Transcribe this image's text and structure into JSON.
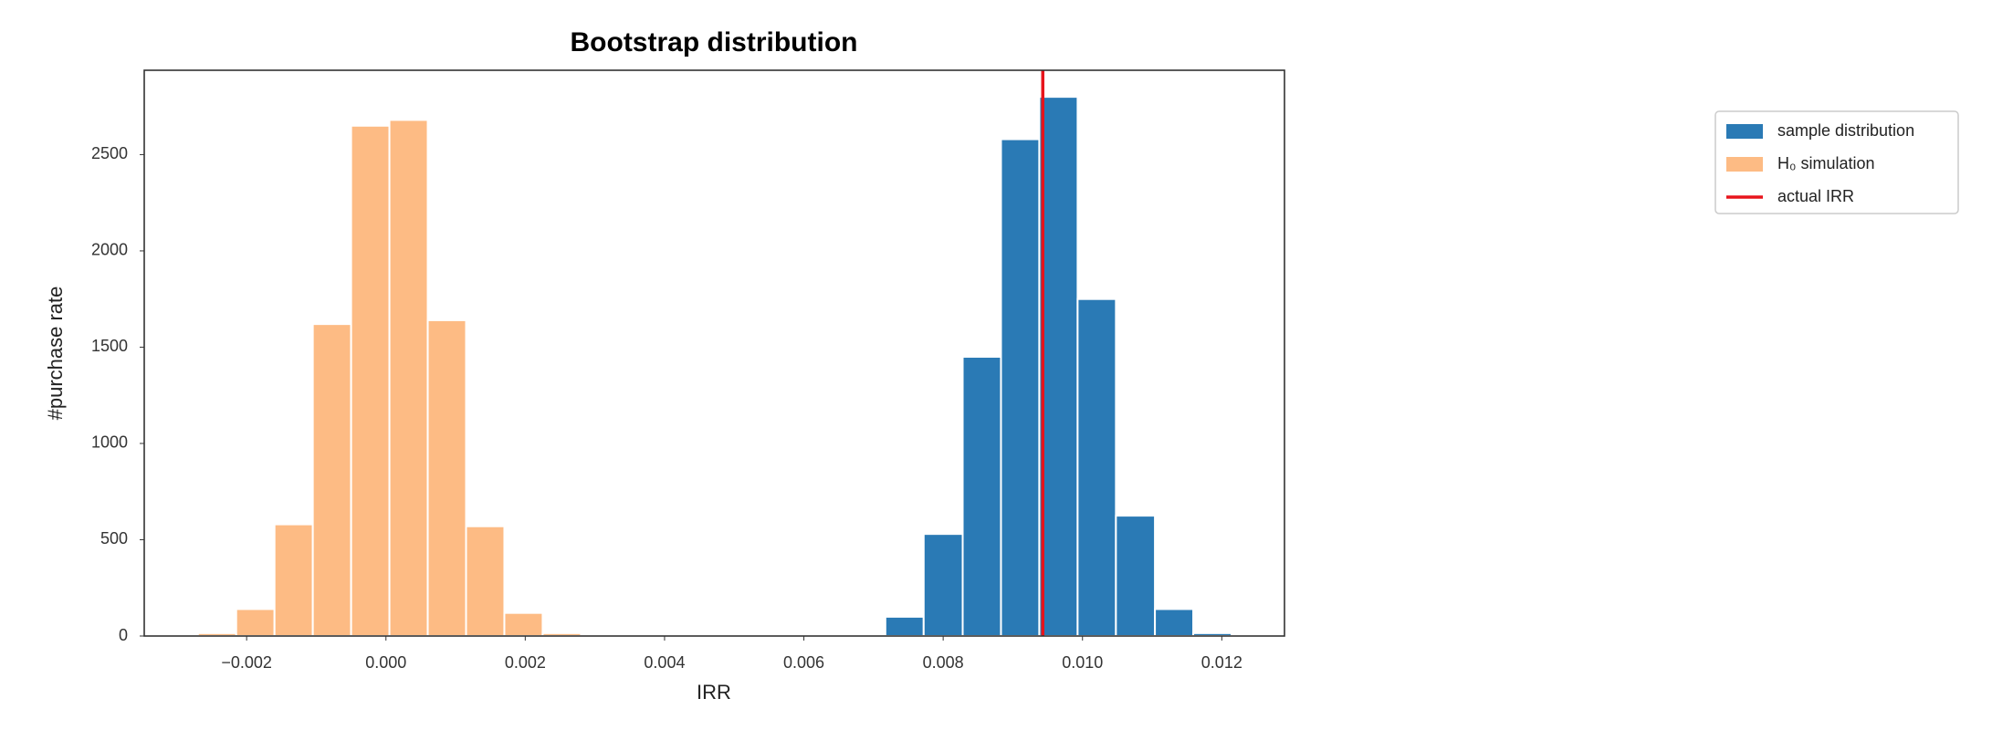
{
  "chart_data": {
    "type": "histogram",
    "title": "Bootstrap distribution",
    "xlabel": "IRR",
    "ylabel": "#purchase rate",
    "xlim": [
      -0.00347,
      0.0129
    ],
    "ylim": [
      0,
      2938
    ],
    "xticks": [
      {
        "value": -0.002,
        "label": "−0.002"
      },
      {
        "value": 0,
        "label": "0.000"
      },
      0.002,
      0.004,
      0.006,
      0.008,
      {
        "value": 0.01,
        "label": "0.010"
      },
      0.012
    ],
    "yticks": [
      0,
      500,
      1000,
      1500,
      2000,
      2500
    ],
    "grid": false,
    "legend": "outside right",
    "series": [
      {
        "name": "sample distribution",
        "color": "#2a7ab5",
        "bins": [
          0.00717,
          0.00772,
          0.00828,
          0.00883,
          0.00938,
          0.00993,
          0.01048,
          0.01104,
          0.01159,
          0.01214
        ],
        "values": [
          100,
          530,
          1450,
          2580,
          2800,
          1750,
          625,
          140,
          15
        ]
      },
      {
        "name": "H₀ simulation",
        "color": "#fdbb84",
        "bins": [
          -0.0027,
          -0.00215,
          -0.0016,
          -0.00105,
          -0.0005,
          5e-05,
          0.0006,
          0.00115,
          0.0017,
          0.00225,
          0.0028
        ],
        "values": [
          15,
          140,
          580,
          1620,
          2650,
          2680,
          1640,
          570,
          120,
          15
        ]
      }
    ],
    "vline": {
      "name": "actual IRR",
      "x": 0.00943,
      "color": "#e8141c"
    }
  }
}
